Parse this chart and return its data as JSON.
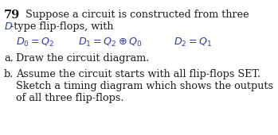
{
  "background_color": "#ffffff",
  "blue": "#2b3b9e",
  "black": "#1a1a1a",
  "figsize": [
    3.49,
    1.7
  ],
  "dpi": 100
}
